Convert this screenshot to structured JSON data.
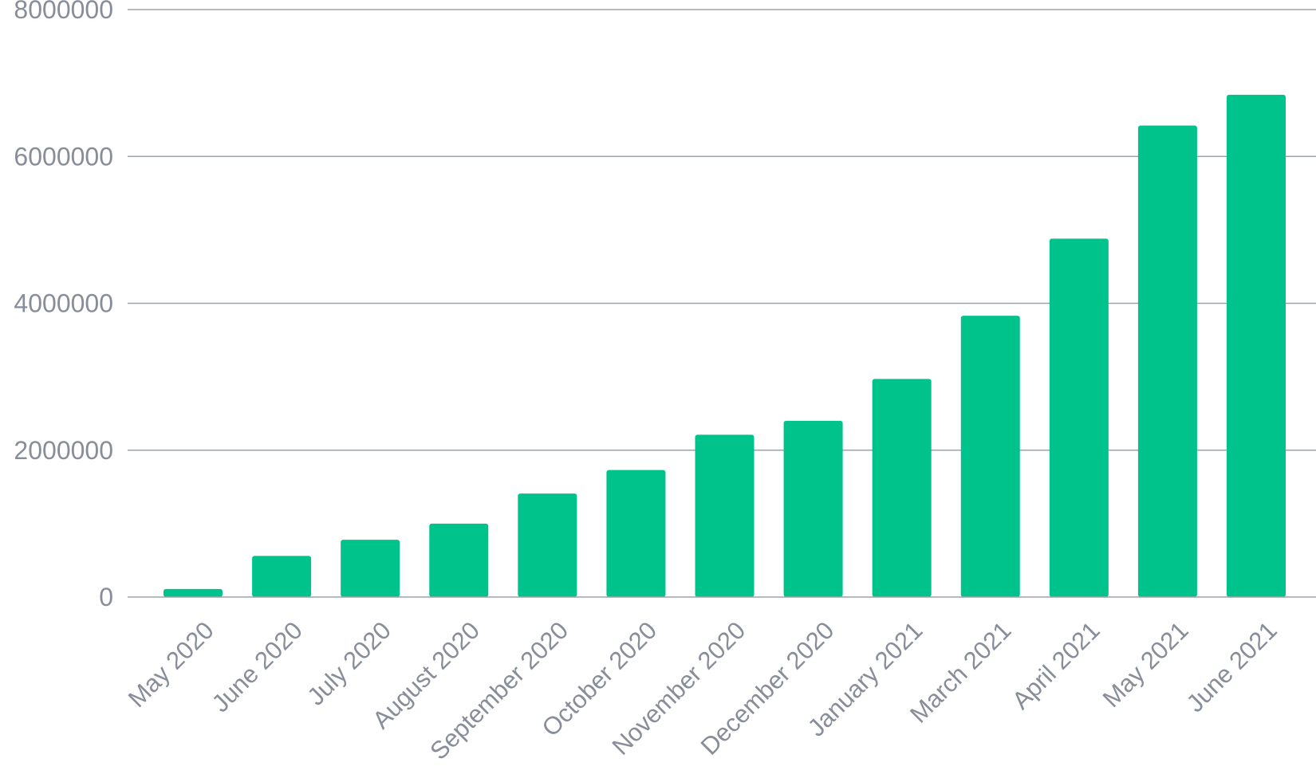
{
  "chart_data": {
    "type": "bar",
    "title": "",
    "xlabel": "",
    "ylabel": "",
    "categories": [
      "May 2020",
      "June 2020",
      "July 2020",
      "August 2020",
      "September 2020",
      "October 2020",
      "November 2020",
      "December 2020",
      "January 2021",
      "March 2021",
      "April 2021",
      "May 2021",
      "June 2021"
    ],
    "values": [
      110000,
      560000,
      780000,
      1000000,
      1410000,
      1730000,
      2210000,
      2400000,
      2970000,
      3830000,
      4880000,
      6420000,
      6840000
    ],
    "ylim": [
      0,
      8000000
    ],
    "yticks": [
      "0",
      "2000000",
      "4000000",
      "6000000",
      "8000000"
    ],
    "grid": true,
    "legend": "none",
    "bar_color": "#00c38b"
  }
}
